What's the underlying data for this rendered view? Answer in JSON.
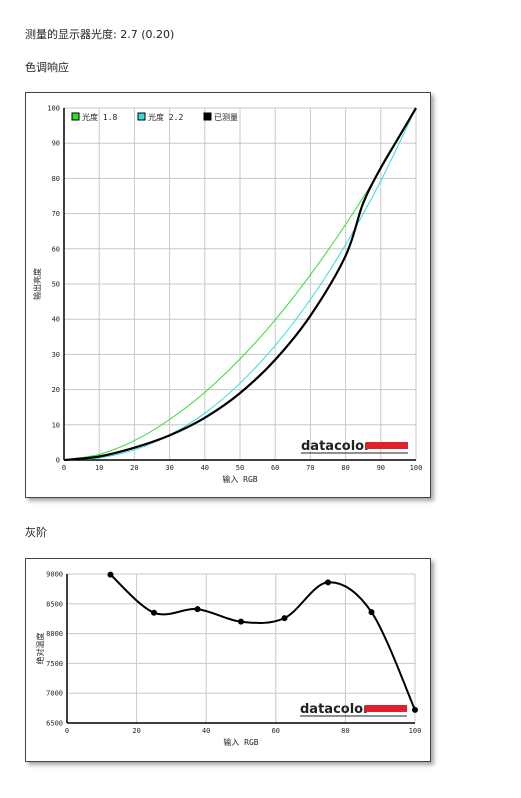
{
  "measured_gamma_text": "测量的显示器光度: 2.7 (0.20)",
  "tone_response_heading": "色调响应",
  "grayscale_heading": "灰阶",
  "brand": "datacolor",
  "colors": {
    "accent_red": "#e0202a",
    "gamma18": "#33dd33",
    "gamma22": "#33dddd",
    "measured": "#000000"
  },
  "chart_data": [
    {
      "type": "line",
      "title": "",
      "xlabel": "输入 RGB",
      "ylabel": "输出亮度",
      "xlim": [
        0,
        100
      ],
      "ylim": [
        0,
        100
      ],
      "xticks": [
        0,
        10,
        20,
        30,
        40,
        50,
        60,
        70,
        80,
        90,
        100
      ],
      "yticks": [
        0,
        10,
        20,
        30,
        40,
        50,
        60,
        70,
        80,
        90,
        100
      ],
      "grid": true,
      "legend": "top-left",
      "series": [
        {
          "name": "光度 1.8",
          "color": "#33dd33",
          "gamma": 1.8,
          "x": [
            0,
            10,
            20,
            30,
            40,
            50,
            60,
            70,
            80,
            90,
            100
          ],
          "y": [
            0,
            1.6,
            5.5,
            11.5,
            19.2,
            28.7,
            39.8,
            52.6,
            66.9,
            82.7,
            100
          ]
        },
        {
          "name": "光度 2.2",
          "color": "#33dddd",
          "gamma": 2.2,
          "x": [
            0,
            10,
            20,
            30,
            40,
            50,
            60,
            70,
            80,
            90,
            100
          ],
          "y": [
            0,
            0.6,
            2.9,
            7.1,
            13.3,
            21.8,
            32.5,
            45.6,
            61.2,
            79.3,
            100
          ]
        },
        {
          "name": "已测量",
          "color": "#000000",
          "x": [
            0,
            10,
            20,
            30,
            40,
            50,
            60,
            70,
            80,
            85,
            90,
            95,
            100
          ],
          "y": [
            0,
            1,
            3.5,
            7,
            12,
            19,
            28.5,
            41,
            58,
            73,
            83,
            91.5,
            100
          ]
        }
      ]
    },
    {
      "type": "line",
      "title": "",
      "xlabel": "输入 RGB",
      "ylabel": "绝对温度",
      "xlim": [
        0,
        100
      ],
      "ylim": [
        6500,
        9000
      ],
      "xticks": [
        0,
        20,
        40,
        60,
        80,
        100
      ],
      "yticks": [
        6500,
        7000,
        7500,
        8000,
        8500,
        9000
      ],
      "grid": true,
      "series": [
        {
          "name": "",
          "color": "#000000",
          "x": [
            12.5,
            25,
            37.5,
            50,
            62.5,
            75,
            87.5,
            100
          ],
          "y": [
            8990,
            8350,
            8410,
            8200,
            8260,
            8860,
            8360,
            6720
          ]
        }
      ]
    }
  ]
}
